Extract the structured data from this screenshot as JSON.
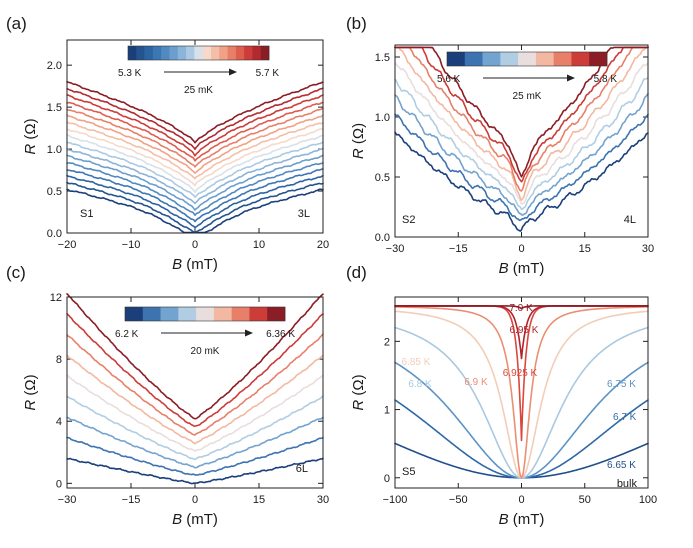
{
  "figure_labels": {
    "a": "(a)",
    "b": "(b)",
    "c": "(c)",
    "d": "(d)"
  },
  "chart_data": [
    {
      "id": "a",
      "type": "line",
      "title": "(a)",
      "xlabel_italic": "B",
      "xlabel_unit": " (mT)",
      "ylabel_italic": "R",
      "ylabel_unit": " (Ω)",
      "xlim": [
        -20,
        20
      ],
      "ylim": [
        0,
        2.3
      ],
      "xticks": [
        -20,
        -10,
        0,
        10,
        20
      ],
      "xtick_labels": [
        "−20",
        "−10",
        "0",
        "10",
        "20"
      ],
      "yticks": [
        0,
        0.5,
        1.0,
        1.5,
        2.0
      ],
      "ytick_labels": [
        "0.0",
        "0.5",
        "1.0",
        "1.5",
        "2.0"
      ],
      "annotations": {
        "sample": "S1",
        "layers": "3L"
      },
      "colorbar": {
        "left_label": "5.3 K",
        "right_label": "5.7 K",
        "step_label": "25 mK"
      },
      "series_params": {
        "count": 17,
        "base0": 0.02,
        "base_step": 0.067,
        "amp0": 0.5,
        "amp_step": 0.013,
        "width": 4.0
      }
    },
    {
      "id": "b",
      "type": "line",
      "title": "(b)",
      "xlabel_italic": "B",
      "xlabel_unit": " (mT)",
      "ylabel_italic": "R",
      "ylabel_unit": " (Ω)",
      "xlim": [
        -30,
        30
      ],
      "ylim": [
        0,
        1.6
      ],
      "xticks": [
        -30,
        -15,
        0,
        15,
        30
      ],
      "xtick_labels": [
        "−30",
        "−15",
        "0",
        "15",
        "30"
      ],
      "yticks": [
        0,
        0.5,
        1.0,
        1.5
      ],
      "ytick_labels": [
        "0.0",
        "0.5",
        "1.0",
        "1.5"
      ],
      "annotations": {
        "sample": "S2",
        "layers": "4L"
      },
      "colorbar": {
        "left_label": "5.6 K",
        "right_label": "5.8 K",
        "step_label": "25 mK"
      },
      "series_params": {
        "count": 9,
        "base0": 0.06,
        "base_step": 0.055,
        "amp0": 0.33,
        "amp_step": 0.035,
        "width": 5.0
      }
    },
    {
      "id": "c",
      "type": "line",
      "title": "(c)",
      "xlabel_italic": "B",
      "xlabel_unit": " (mT)",
      "ylabel_italic": "R",
      "ylabel_unit": " (Ω)",
      "xlim": [
        -30,
        30
      ],
      "ylim": [
        -0.3,
        12
      ],
      "xticks": [
        -30,
        -15,
        0,
        15,
        30
      ],
      "xtick_labels": [
        "−30",
        "−15",
        "0",
        "15",
        "30"
      ],
      "yticks": [
        0,
        4,
        8,
        12
      ],
      "ytick_labels": [
        "0",
        "4",
        "8",
        "12"
      ],
      "annotations": {
        "layers": "6L"
      },
      "colorbar": {
        "left_label": "6.2 K",
        "right_label": "6.36 K",
        "step_label": "20 mK"
      },
      "series_params": {
        "count": 9,
        "base0": 0.0,
        "base_step": 0.52,
        "amp0": 1.6,
        "amp_step": 0.72,
        "width": 0
      }
    },
    {
      "id": "d",
      "type": "line",
      "title": "(d)",
      "xlabel_italic": "B",
      "xlabel_unit": " (mT)",
      "ylabel_italic": "R",
      "ylabel_unit": " (Ω)",
      "xlim": [
        -100,
        100
      ],
      "ylim": [
        -0.15,
        2.65
      ],
      "xticks": [
        -100,
        -50,
        0,
        50,
        100
      ],
      "xtick_labels": [
        "−100",
        "−50",
        "0",
        "50",
        "100"
      ],
      "yticks": [
        0,
        1,
        2
      ],
      "ytick_labels": [
        "0",
        "1",
        "2"
      ],
      "annotations": {
        "sample": "S5",
        "bulk": "bulk"
      },
      "series": [
        {
          "name": "6.65 K",
          "color": "#1f4e8c",
          "width": 200
        },
        {
          "name": "6.7 K",
          "color": "#2f68a8",
          "width": 110
        },
        {
          "name": "6.75 K",
          "color": "#5b93c6",
          "width": 70
        },
        {
          "name": "6.8 K",
          "color": "#a9c9e2",
          "width": 38
        },
        {
          "name": "6.85 K",
          "color": "#f3cdb8",
          "width": 18
        },
        {
          "name": "6.9 K",
          "color": "#ea8f73",
          "width": 8
        },
        {
          "name": "6.925 K",
          "color": "#d9473d",
          "width": 3.5
        },
        {
          "name": "6.95 K",
          "color": "#b3232b",
          "width": 4
        },
        {
          "name": "7.0 K",
          "color": "#8a1a24",
          "width": 1
        }
      ]
    }
  ],
  "palette": {
    "c17": [
      "#1b3f7a",
      "#24548f",
      "#2d64a2",
      "#3c76b3",
      "#5189c0",
      "#6c9ecd",
      "#8bb4d8",
      "#acc9e3",
      "#d8e1ea",
      "#f6d9cb",
      "#f4bfa8",
      "#f0a286",
      "#e88069",
      "#dd5d4e",
      "#cc3c38",
      "#b22a2f",
      "#8a1d26"
    ],
    "c9": [
      "#1b3f7a",
      "#3d73b0",
      "#73a3cf",
      "#b1cde3",
      "#e9dede",
      "#f3b8a1",
      "#e88069",
      "#cc3c38",
      "#8a1d26"
    ]
  }
}
